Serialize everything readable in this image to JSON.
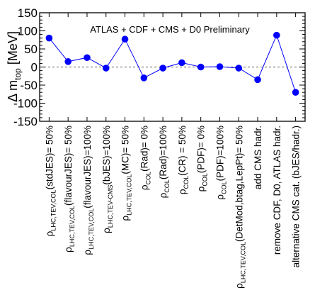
{
  "chart_data": {
    "type": "scatter",
    "title": "ATLAS + CDF + CMS + D0 Preliminary",
    "ylabel": {
      "main": "Δ m",
      "sub": "top",
      "unit": " [MeV]"
    },
    "ylim": [
      -150,
      150
    ],
    "yticks": [
      "150",
      "100",
      "50",
      "0",
      "-50",
      "-100",
      "-150"
    ],
    "reference_line": 0,
    "marker_color": "#0000ff",
    "line_color": "#0000ff",
    "categories": [
      {
        "base": "ρ",
        "sub": "LHC,TEV,COL",
        "text": "(stdJES)= 50%"
      },
      {
        "base": "ρ",
        "sub": "LHC,TEV,COL",
        "text": "(flavourJES)= 50%"
      },
      {
        "base": "ρ",
        "sub": "LHC,TEV,COL",
        "text": "(flavourJES)=100%"
      },
      {
        "base": "ρ",
        "sub": "LHC,TEV-CMS",
        "text": "(bJES)=100%"
      },
      {
        "base": "ρ",
        "sub": "LHC,TEV,COL",
        "text": "(MC)= 50%"
      },
      {
        "base": "ρ",
        "sub": "COL",
        "text": "(Rad)= 0%"
      },
      {
        "base": "ρ",
        "sub": "COL",
        "text": "(Rad)=100%"
      },
      {
        "base": "ρ",
        "sub": "COL",
        "text": "(CR) = 50%"
      },
      {
        "base": "ρ",
        "sub": "COL",
        "text": "(PDF)= 0%"
      },
      {
        "base": "ρ",
        "sub": "COL",
        "text": "(PDF)=100%"
      },
      {
        "base": "ρ",
        "sub": "LHC,TEV,COL",
        "text": "(DetMod,btag,LepPt)= 50%"
      },
      {
        "base": "",
        "sub": "",
        "text": "add CMS hadr."
      },
      {
        "base": "",
        "sub": "",
        "text": "remove CDF, D0, ATLAS hadr."
      },
      {
        "base": "",
        "sub": "",
        "text": "alternative CMS cat. (bJES/hadr.)"
      }
    ],
    "values": [
      80,
      15,
      26,
      -3,
      77,
      -30,
      -3,
      12,
      0,
      1,
      -3,
      -35,
      88,
      -70
    ]
  }
}
